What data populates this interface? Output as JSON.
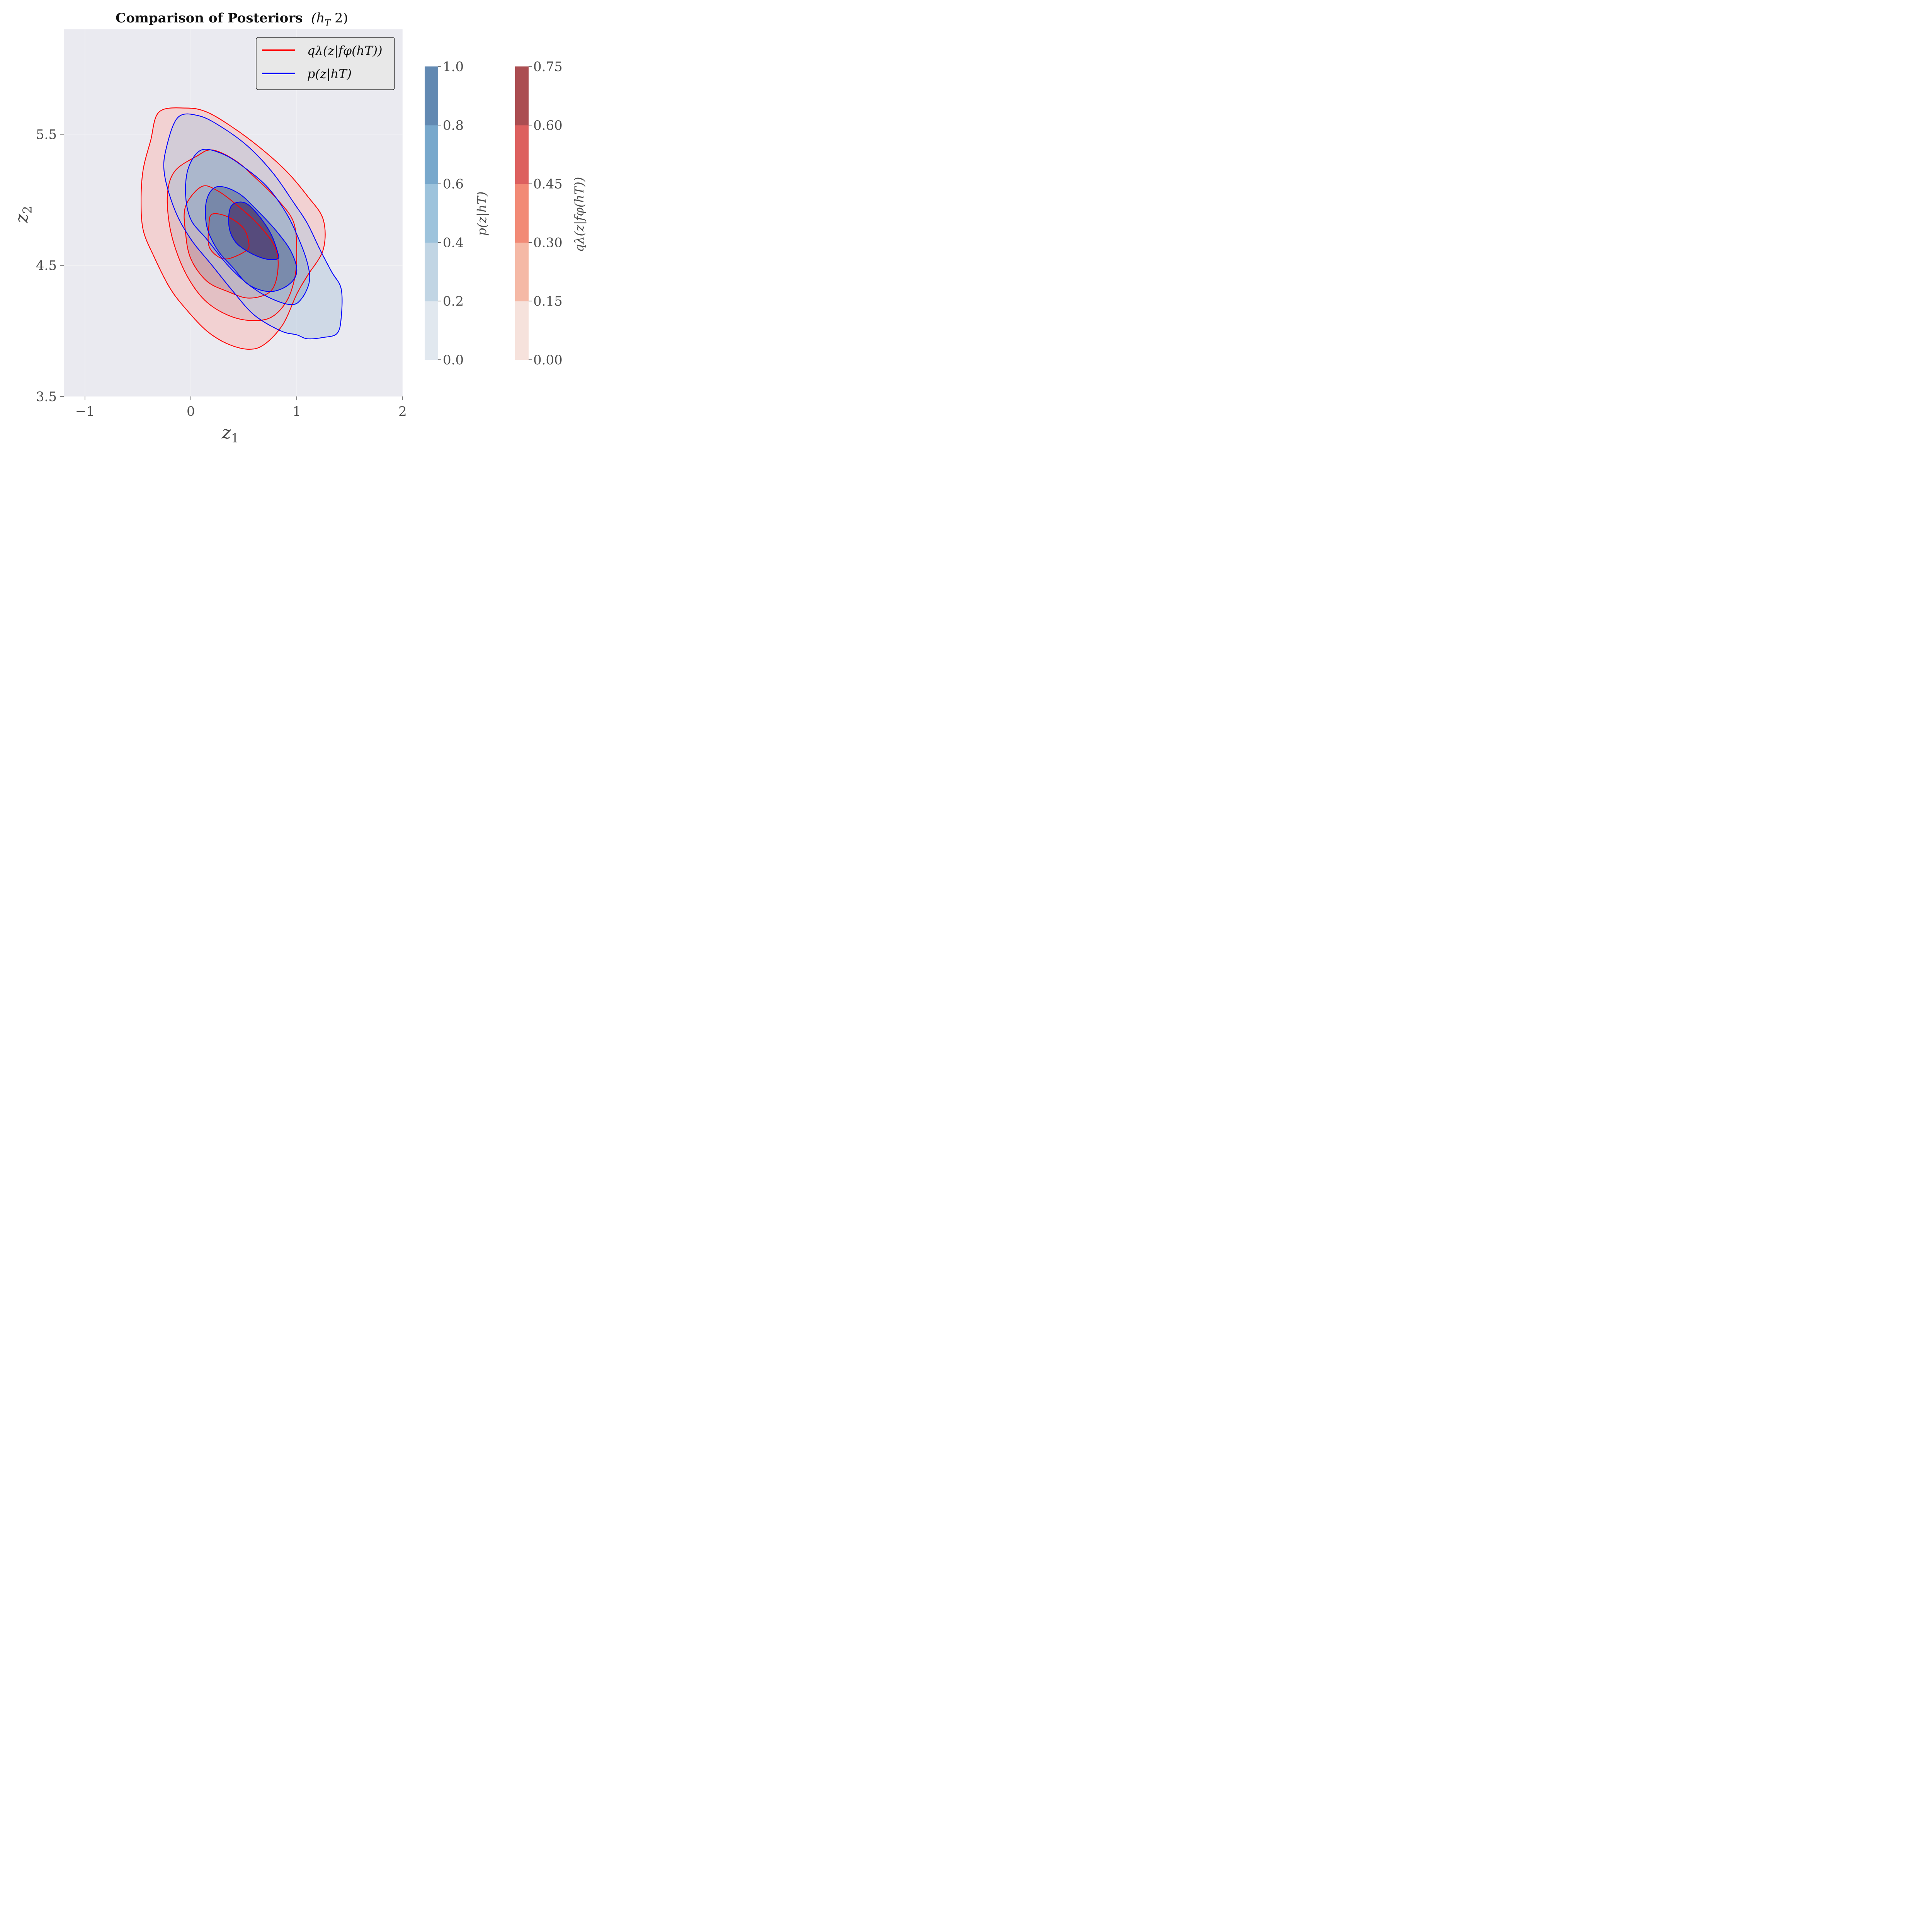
{
  "chart_data": {
    "type": "contour",
    "title": "Comparison of Posteriors (h_T 2)",
    "title_bold": "Comparison of Posteriors",
    "title_math": "(h",
    "title_math_sub": "T",
    "title_math_tail": " 2)",
    "xlabel": "z",
    "xlabel_sub": "1",
    "ylabel": "z",
    "ylabel_sub": "2",
    "xlim": [
      -1.2,
      2.0
    ],
    "ylim": [
      3.5,
      6.3
    ],
    "xticks": [
      -1,
      0,
      1,
      2
    ],
    "xtick_labels": [
      "−1",
      "0",
      "1",
      "2"
    ],
    "yticks": [
      3.5,
      4.5,
      5.5
    ],
    "ytick_labels": [
      "3.5",
      "4.5",
      "5.5"
    ],
    "background": "#eaeaf0",
    "legend": {
      "position": "top-right",
      "entries": [
        {
          "label": "qλ(z|fφ(hT))",
          "color": "#ff0000"
        },
        {
          "label": "p(z|hT)",
          "color": "#0000ff"
        }
      ]
    },
    "series": [
      {
        "name": "qλ(z|fφ(hT))",
        "color": "#ff0000",
        "colormap": "Reds",
        "levels": [
          {
            "fill": "#f2d1d2",
            "points": [
              [
                -0.3,
                5.67
              ],
              [
                -0.05,
                5.7
              ],
              [
                0.15,
                5.67
              ],
              [
                0.4,
                5.55
              ],
              [
                0.65,
                5.4
              ],
              [
                0.9,
                5.22
              ],
              [
                1.1,
                5.03
              ],
              [
                1.25,
                4.85
              ],
              [
                1.25,
                4.62
              ],
              [
                1.1,
                4.42
              ],
              [
                1.0,
                4.28
              ],
              [
                0.87,
                4.05
              ],
              [
                0.7,
                3.9
              ],
              [
                0.55,
                3.86
              ],
              [
                0.35,
                3.9
              ],
              [
                0.15,
                4.0
              ],
              [
                -0.05,
                4.17
              ],
              [
                -0.2,
                4.33
              ],
              [
                -0.35,
                4.57
              ],
              [
                -0.45,
                4.77
              ],
              [
                -0.47,
                5.0
              ],
              [
                -0.45,
                5.23
              ],
              [
                -0.38,
                5.45
              ]
            ]
          },
          {
            "fill": "#e3c0c4",
            "points": [
              [
                0.05,
                5.33
              ],
              [
                0.2,
                5.38
              ],
              [
                0.42,
                5.3
              ],
              [
                0.62,
                5.16
              ],
              [
                0.82,
                5.0
              ],
              [
                0.97,
                4.83
              ],
              [
                1.0,
                4.6
              ],
              [
                0.98,
                4.4
              ],
              [
                0.9,
                4.22
              ],
              [
                0.75,
                4.1
              ],
              [
                0.55,
                4.08
              ],
              [
                0.35,
                4.12
              ],
              [
                0.15,
                4.22
              ],
              [
                0.0,
                4.37
              ],
              [
                -0.12,
                4.57
              ],
              [
                -0.2,
                4.8
              ],
              [
                -0.22,
                5.05
              ],
              [
                -0.15,
                5.22
              ]
            ]
          },
          {
            "fill": "#cca5ad",
            "points": [
              [
                0.1,
                5.1
              ],
              [
                0.25,
                5.07
              ],
              [
                0.45,
                4.95
              ],
              [
                0.65,
                4.8
              ],
              [
                0.8,
                4.63
              ],
              [
                0.82,
                4.45
              ],
              [
                0.75,
                4.3
              ],
              [
                0.55,
                4.25
              ],
              [
                0.35,
                4.3
              ],
              [
                0.15,
                4.38
              ],
              [
                0.0,
                4.55
              ],
              [
                -0.05,
                4.75
              ],
              [
                -0.05,
                4.95
              ]
            ]
          },
          {
            "fill": "#a88a9e",
            "points": [
              [
                0.2,
                4.89
              ],
              [
                0.35,
                4.87
              ],
              [
                0.5,
                4.78
              ],
              [
                0.55,
                4.65
              ],
              [
                0.5,
                4.6
              ],
              [
                0.35,
                4.55
              ],
              [
                0.25,
                4.57
              ],
              [
                0.17,
                4.65
              ],
              [
                0.17,
                4.8
              ]
            ]
          }
        ]
      },
      {
        "name": "p(z|hT)",
        "color": "#0000ff",
        "colormap": "Blues",
        "levels": [
          {
            "fill": "rgba(180,200,220,0.5)",
            "points": [
              [
                -0.12,
                5.63
              ],
              [
                0.08,
                5.64
              ],
              [
                0.3,
                5.55
              ],
              [
                0.55,
                5.4
              ],
              [
                0.78,
                5.2
              ],
              [
                0.97,
                4.98
              ],
              [
                1.1,
                4.82
              ],
              [
                1.22,
                4.62
              ],
              [
                1.33,
                4.45
              ],
              [
                1.42,
                4.32
              ],
              [
                1.42,
                4.1
              ],
              [
                1.38,
                3.98
              ],
              [
                1.25,
                3.95
              ],
              [
                1.1,
                3.94
              ],
              [
                1.0,
                3.97
              ],
              [
                0.85,
                4.0
              ],
              [
                0.6,
                4.12
              ],
              [
                0.4,
                4.3
              ],
              [
                0.2,
                4.5
              ],
              [
                0.0,
                4.7
              ],
              [
                -0.15,
                4.92
              ],
              [
                -0.25,
                5.2
              ],
              [
                -0.23,
                5.4
              ]
            ]
          },
          {
            "fill": "rgba(140,170,200,0.5)",
            "points": [
              [
                0.1,
                5.38
              ],
              [
                0.3,
                5.35
              ],
              [
                0.5,
                5.25
              ],
              [
                0.72,
                5.1
              ],
              [
                0.9,
                4.9
              ],
              [
                1.02,
                4.7
              ],
              [
                1.1,
                4.52
              ],
              [
                1.12,
                4.38
              ],
              [
                1.05,
                4.25
              ],
              [
                0.95,
                4.2
              ],
              [
                0.75,
                4.25
              ],
              [
                0.55,
                4.35
              ],
              [
                0.35,
                4.5
              ],
              [
                0.15,
                4.7
              ],
              [
                0.0,
                4.85
              ],
              [
                -0.05,
                5.05
              ],
              [
                -0.02,
                5.25
              ]
            ]
          },
          {
            "fill": "rgba(90,110,150,0.6)",
            "points": [
              [
                0.25,
                5.1
              ],
              [
                0.45,
                5.05
              ],
              [
                0.65,
                4.9
              ],
              [
                0.82,
                4.75
              ],
              [
                0.95,
                4.6
              ],
              [
                1.0,
                4.45
              ],
              [
                0.92,
                4.35
              ],
              [
                0.75,
                4.3
              ],
              [
                0.55,
                4.35
              ],
              [
                0.4,
                4.48
              ],
              [
                0.25,
                4.62
              ],
              [
                0.15,
                4.8
              ],
              [
                0.15,
                5.0
              ]
            ]
          },
          {
            "fill": "rgba(75,55,110,0.75)",
            "points": [
              [
                0.38,
                4.95
              ],
              [
                0.5,
                4.98
              ],
              [
                0.62,
                4.9
              ],
              [
                0.75,
                4.75
              ],
              [
                0.82,
                4.6
              ],
              [
                0.82,
                4.55
              ],
              [
                0.7,
                4.55
              ],
              [
                0.55,
                4.6
              ],
              [
                0.42,
                4.68
              ],
              [
                0.36,
                4.8
              ]
            ]
          }
        ]
      }
    ],
    "colorbars": [
      {
        "label": "p(z|hT)",
        "ticks": [
          "0.0",
          "0.2",
          "0.4",
          "0.6",
          "0.8",
          "1.0"
        ],
        "bands": [
          "#e1e8ef",
          "#c1d5e4",
          "#9dc3dc",
          "#78a8cc",
          "#6289b2"
        ]
      },
      {
        "label": "qλ(z|fφ(hT))",
        "ticks": [
          "0.00",
          "0.15",
          "0.30",
          "0.45",
          "0.60",
          "0.75"
        ],
        "bands": [
          "#f6e2dc",
          "#f5b9a6",
          "#f28a76",
          "#dd605f",
          "#ab4d51"
        ]
      }
    ]
  }
}
